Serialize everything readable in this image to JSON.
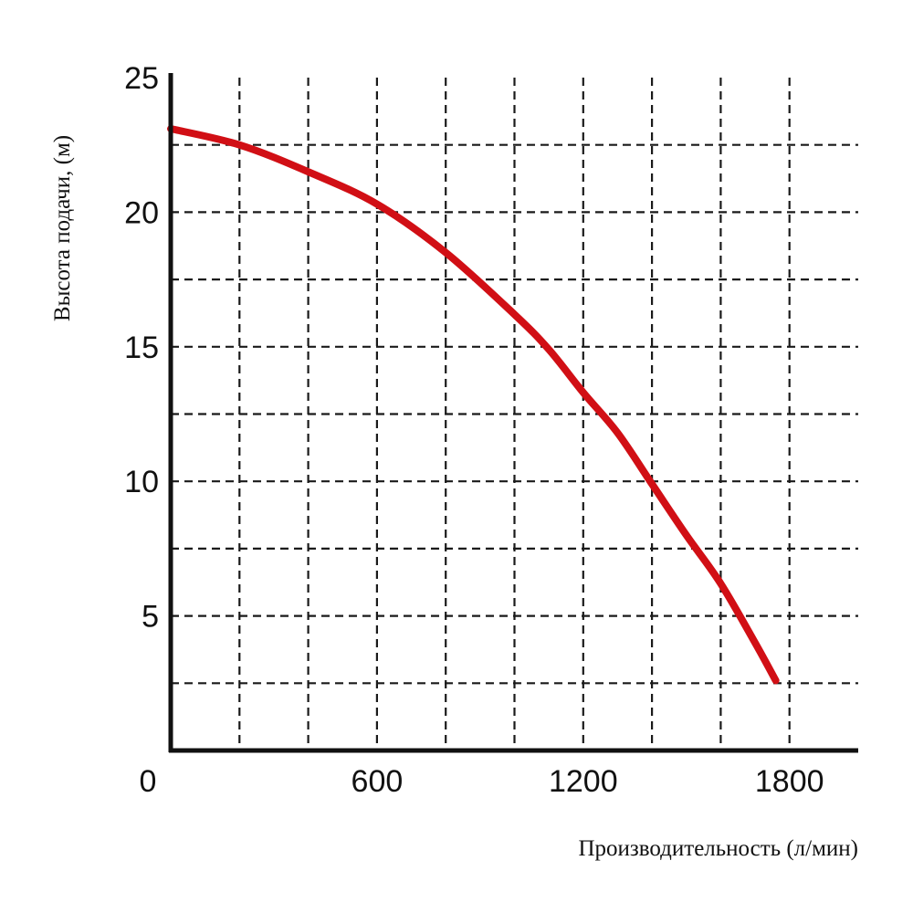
{
  "chart_data": {
    "type": "line",
    "title": "",
    "xlabel": "Производительность (л/мин)",
    "ylabel": "Высота подачи, (м)",
    "xlim": [
      0,
      2000
    ],
    "ylim": [
      0,
      25
    ],
    "x_ticks": [
      0,
      600,
      1200,
      1800
    ],
    "y_ticks": [
      5,
      10,
      15,
      20,
      25
    ],
    "x_grid": [
      200,
      400,
      600,
      800,
      1000,
      1200,
      1400,
      1600,
      1800
    ],
    "y_grid": [
      2.5,
      5,
      7.5,
      10,
      12.5,
      15,
      17.5,
      20,
      22.5
    ],
    "grid": true,
    "series": [
      {
        "color": "#d10f15",
        "x": [
          0,
          200,
          400,
          600,
          800,
          1000,
          1100,
          1200,
          1300,
          1400,
          1500,
          1600,
          1700,
          1760
        ],
        "values": [
          23.1,
          22.5,
          21.5,
          20.3,
          18.5,
          16.2,
          14.9,
          13.3,
          11.8,
          9.9,
          8.0,
          6.2,
          4.0,
          2.6
        ]
      }
    ]
  }
}
